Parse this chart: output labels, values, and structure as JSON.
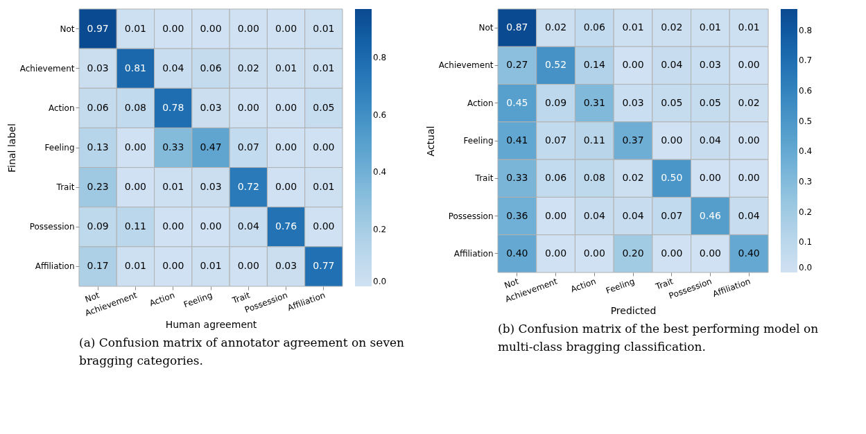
{
  "chart_data": [
    {
      "type": "heatmap",
      "xlabel": "Human agreement",
      "ylabel": "Final label",
      "categories": [
        "Not",
        "Achievement",
        "Action",
        "Feeling",
        "Trait",
        "Possession",
        "Affiliation"
      ],
      "y_categories": [
        "Not",
        "Achievement",
        "Action",
        "Feeling",
        "Trait",
        "Possession",
        "Affiliation"
      ],
      "cells": [
        [
          0.97,
          0.01,
          0.0,
          0.0,
          0.0,
          0.0,
          0.01
        ],
        [
          0.03,
          0.81,
          0.04,
          0.06,
          0.02,
          0.01,
          0.01
        ],
        [
          0.06,
          0.08,
          0.78,
          0.03,
          0.0,
          0.0,
          0.05
        ],
        [
          0.13,
          0.0,
          0.33,
          0.47,
          0.07,
          0.0,
          0.0
        ],
        [
          0.23,
          0.0,
          0.01,
          0.03,
          0.72,
          0.0,
          0.01
        ],
        [
          0.09,
          0.11,
          0.0,
          0.0,
          0.04,
          0.76,
          0.0
        ],
        [
          0.17,
          0.01,
          0.0,
          0.01,
          0.0,
          0.03,
          0.77
        ]
      ],
      "cell_labels": [
        [
          "0.97",
          "0.01",
          "0.00",
          "0.00",
          "0.00",
          "0.00",
          "0.01"
        ],
        [
          "0.03",
          "0.81",
          "0.04",
          "0.06",
          "0.02",
          "0.01",
          "0.01"
        ],
        [
          "0.06",
          "0.08",
          "0.78",
          "0.03",
          "0.00",
          "0.00",
          "0.05"
        ],
        [
          "0.13",
          "0.00",
          "0.33",
          "0.47",
          "0.07",
          "0.00",
          "0.00"
        ],
        [
          "0.23",
          "0.00",
          "0.01",
          "0.03",
          "0.72",
          "0.00",
          "0.01"
        ],
        [
          "0.09",
          "0.11",
          "0.00",
          "0.00",
          "0.04",
          "0.76",
          "0.00"
        ],
        [
          "0.17",
          "0.01",
          "0.00",
          "0.01",
          "0.00",
          "0.03",
          "0.77"
        ]
      ],
      "clim": [
        0,
        0.97
      ],
      "cticks": [
        {
          "value": 0,
          "label": "0.0"
        },
        {
          "value": 0.2,
          "label": "0.2"
        },
        {
          "value": 0.4,
          "label": "0.4"
        },
        {
          "value": 0.6,
          "label": "0.6"
        },
        {
          "value": 0.8,
          "label": "0.8"
        }
      ],
      "annotations": [
        "(a) Confusion matrix of annotator agreement on seven bragging categories."
      ]
    },
    {
      "type": "heatmap",
      "xlabel": "Predicted",
      "ylabel": "Actual",
      "categories": [
        "Not",
        "Achievement",
        "Action",
        "Feeling",
        "Trait",
        "Possession",
        "Affiliation"
      ],
      "y_categories": [
        "Not",
        "Achievement",
        "Action",
        "Feeling",
        "Trait",
        "Possession",
        "Affiliation"
      ],
      "cells": [
        [
          0.87,
          0.02,
          0.06,
          0.01,
          0.02,
          0.01,
          0.01
        ],
        [
          0.27,
          0.52,
          0.14,
          0.0,
          0.04,
          0.03,
          0.0
        ],
        [
          0.45,
          0.09,
          0.31,
          0.03,
          0.05,
          0.05,
          0.02
        ],
        [
          0.41,
          0.07,
          0.11,
          0.37,
          0.0,
          0.04,
          0.0
        ],
        [
          0.33,
          0.06,
          0.08,
          0.02,
          0.5,
          0.0,
          0.0
        ],
        [
          0.36,
          0.0,
          0.04,
          0.04,
          0.07,
          0.46,
          0.04
        ],
        [
          0.4,
          0.0,
          0.0,
          0.2,
          0.0,
          0.0,
          0.4
        ]
      ],
      "cell_labels": [
        [
          "0.87",
          "0.02",
          "0.06",
          "0.01",
          "0.02",
          "0.01",
          "0.01"
        ],
        [
          "0.27",
          "0.52",
          "0.14",
          "0.00",
          "0.04",
          "0.03",
          "0.00"
        ],
        [
          "0.45",
          "0.09",
          "0.31",
          "0.03",
          "0.05",
          "0.05",
          "0.02"
        ],
        [
          "0.41",
          "0.07",
          "0.11",
          "0.37",
          "0.00",
          "0.04",
          "0.00"
        ],
        [
          "0.33",
          "0.06",
          "0.08",
          "0.02",
          "0.50",
          "0.00",
          "0.00"
        ],
        [
          "0.36",
          "0.00",
          "0.04",
          "0.04",
          "0.07",
          "0.46",
          "0.04"
        ],
        [
          "0.40",
          "0.00",
          "0.00",
          "0.20",
          "0.00",
          "0.00",
          "0.40"
        ]
      ],
      "clim": [
        0,
        0.87
      ],
      "cticks": [
        {
          "value": 0,
          "label": "0.0"
        },
        {
          "value": 0.1,
          "label": "0.1"
        },
        {
          "value": 0.2,
          "label": "0.2"
        },
        {
          "value": 0.3,
          "label": "0.3"
        },
        {
          "value": 0.4,
          "label": "0.4"
        },
        {
          "value": 0.5,
          "label": "0.5"
        },
        {
          "value": 0.6,
          "label": "0.6"
        },
        {
          "value": 0.7,
          "label": "0.7"
        },
        {
          "value": 0.8,
          "label": "0.8"
        }
      ],
      "annotations": [
        "(b) Confusion matrix of the best performing model on multi-class bragging classification."
      ]
    }
  ]
}
